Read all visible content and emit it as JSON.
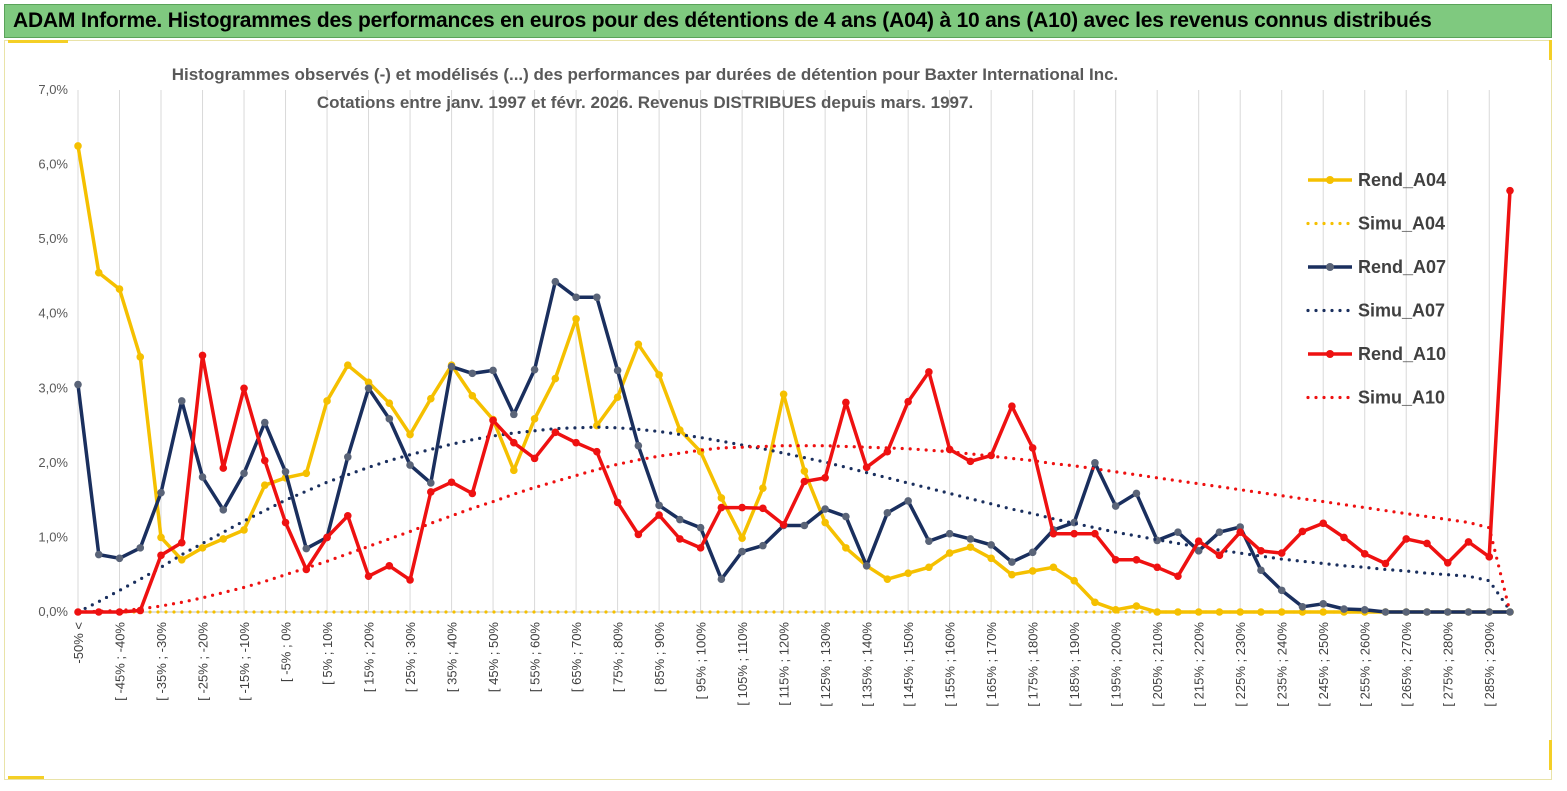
{
  "banner_title": "ADAM Informe. Histogrammes des performances en euros pour des détentions de 4 ans (A04) à 10 ans (A10) avec les revenus connus distribués",
  "chart_data": {
    "type": "line",
    "title_line1": "Histogrammes observés (-) et modélisés (...) des performances par durées de détention pour Baxter International Inc.",
    "title_line2": "Cotations entre janv. 1997 et févr. 2026. Revenus DISTRIBUES depuis mars. 1997.",
    "ylim": [
      0,
      7
    ],
    "yticks": [
      "0,0%",
      "1,0%",
      "2,0%",
      "3,0%",
      "4,0%",
      "5,0%",
      "6,0%",
      "7,0%"
    ],
    "xlabels": [
      "-50% <",
      "[ -45% ; -40%",
      "[ -35% ; -30%",
      "[ -25% ; -20%",
      "[ -15% ; -10%",
      "[ -5% ; 0%",
      "[ 5% ; 10%",
      "[ 15% ; 20%",
      "[ 25% ; 30%",
      "[ 35% ; 40%",
      "[ 45% ; 50%",
      "[ 55% ; 60%",
      "[ 65% ; 70%",
      "[ 75% ; 80%",
      "[ 85% ; 90%",
      "[ 95% ; 100%",
      "[ 105% ; 110%",
      "[ 115% ; 120%",
      "[ 125% ; 130%",
      "[ 135% ; 140%",
      "[ 145% ; 150%",
      "[ 155% ; 160%",
      "[ 165% ; 170%",
      "[ 175% ; 180%",
      "[ 185% ; 190%",
      "[ 195% ; 200%",
      "[ 205% ; 210%",
      "[ 215% ; 220%",
      "[ 225% ; 230%",
      "[ 235% ; 240%",
      "[ 245% ; 250%",
      "[ 255% ; 260%",
      "[ 265% ; 270%",
      "[ 275% ; 280%",
      "[ 285% ; 290%"
    ],
    "series": [
      {
        "name": "Rend_A04",
        "style": "solid",
        "color": "#f5c000",
        "values": [
          6.25,
          4.55,
          4.33,
          3.42,
          1.0,
          0.7,
          0.86,
          0.98,
          1.1,
          1.7,
          1.8,
          1.86,
          2.83,
          3.31,
          3.08,
          2.8,
          2.38,
          2.86,
          3.31,
          2.9,
          2.58,
          1.9,
          2.59,
          3.13,
          3.93,
          2.5,
          2.88,
          3.59,
          3.18,
          2.44,
          2.15,
          1.53,
          0.99,
          1.66,
          2.92,
          1.89,
          1.2,
          0.86,
          0.62,
          0.44,
          0.52,
          0.6,
          0.79,
          0.87,
          0.72,
          0.5,
          0.55,
          0.6,
          0.42,
          0.13,
          0.03,
          0.08,
          0,
          0,
          0,
          0,
          0,
          0,
          0,
          0,
          0,
          0,
          0,
          0,
          0,
          0,
          0,
          0,
          0,
          0
        ]
      },
      {
        "name": "Simu_A04",
        "style": "dotted",
        "color": "#f5c000",
        "values": [
          0,
          0,
          0,
          0,
          0,
          0,
          0,
          0,
          0,
          0,
          0,
          0,
          0,
          0,
          0,
          0,
          0,
          0,
          0,
          0,
          0,
          0,
          0,
          0,
          0,
          0,
          0,
          0,
          0,
          0,
          0,
          0,
          0,
          0,
          0,
          0,
          0,
          0,
          0,
          0,
          0,
          0,
          0,
          0,
          0,
          0,
          0,
          0,
          0,
          0,
          0,
          0,
          0,
          0,
          0,
          0,
          0,
          0,
          0,
          0,
          0,
          0,
          0,
          0,
          0,
          0,
          0,
          0,
          0,
          0
        ]
      },
      {
        "name": "Rend_A07",
        "style": "solid",
        "color": "#1a2f5e",
        "values": [
          3.05,
          0.77,
          0.72,
          0.86,
          1.6,
          2.83,
          1.81,
          1.37,
          1.86,
          2.54,
          1.88,
          0.85,
          1.0,
          2.08,
          3.0,
          2.59,
          1.97,
          1.73,
          3.29,
          3.2,
          3.24,
          2.65,
          3.25,
          4.43,
          4.22,
          4.22,
          3.24,
          2.23,
          1.43,
          1.24,
          1.13,
          0.44,
          0.81,
          0.89,
          1.16,
          1.16,
          1.38,
          1.28,
          0.62,
          1.33,
          1.49,
          0.95,
          1.05,
          0.98,
          0.9,
          0.67,
          0.8,
          1.1,
          1.2,
          2.0,
          1.42,
          1.59,
          0.96,
          1.07,
          0.82,
          1.07,
          1.14,
          0.56,
          0.29,
          0.07,
          0.11,
          0.04,
          0.03,
          0,
          0,
          0,
          0,
          0,
          0,
          0
        ]
      },
      {
        "name": "Simu_A07",
        "style": "dotted",
        "color": "#1a2f5e",
        "values": [
          0,
          0.14,
          0.29,
          0.44,
          0.6,
          0.77,
          0.92,
          1.07,
          1.22,
          1.36,
          1.5,
          1.62,
          1.74,
          1.84,
          1.94,
          2.03,
          2.11,
          2.18,
          2.25,
          2.31,
          2.36,
          2.4,
          2.43,
          2.46,
          2.47,
          2.48,
          2.47,
          2.45,
          2.42,
          2.38,
          2.34,
          2.29,
          2.24,
          2.19,
          2.13,
          2.07,
          2.01,
          1.94,
          1.87,
          1.8,
          1.73,
          1.66,
          1.59,
          1.52,
          1.45,
          1.38,
          1.32,
          1.25,
          1.19,
          1.13,
          1.07,
          1.02,
          0.97,
          0.92,
          0.87,
          0.83,
          0.79,
          0.75,
          0.71,
          0.68,
          0.65,
          0.62,
          0.6,
          0.57,
          0.55,
          0.52,
          0.5,
          0.48,
          0.42,
          0.02
        ]
      },
      {
        "name": "Rend_A10",
        "style": "solid",
        "color": "#ee1111",
        "values": [
          0,
          0,
          0,
          0.02,
          0.76,
          0.93,
          3.44,
          1.93,
          3.0,
          2.03,
          1.2,
          0.57,
          1.0,
          1.29,
          0.48,
          0.62,
          0.43,
          1.61,
          1.74,
          1.59,
          2.57,
          2.27,
          2.06,
          2.41,
          2.27,
          2.15,
          1.47,
          1.04,
          1.3,
          0.98,
          0.86,
          1.4,
          1.4,
          1.39,
          1.17,
          1.75,
          1.8,
          2.81,
          1.94,
          2.15,
          2.82,
          3.22,
          2.18,
          2.02,
          2.1,
          2.76,
          2.2,
          1.05,
          1.05,
          1.05,
          0.7,
          0.7,
          0.6,
          0.48,
          0.95,
          0.76,
          1.07,
          0.82,
          0.79,
          1.08,
          1.19,
          1.0,
          0.78,
          0.65,
          0.98,
          0.92,
          0.66,
          0.94,
          0.74,
          5.65
        ]
      },
      {
        "name": "Simu_A10",
        "style": "dotted",
        "color": "#ee1111",
        "values": [
          0,
          0.01,
          0.02,
          0.04,
          0.08,
          0.13,
          0.19,
          0.26,
          0.33,
          0.41,
          0.5,
          0.59,
          0.68,
          0.78,
          0.88,
          0.98,
          1.08,
          1.19,
          1.29,
          1.39,
          1.48,
          1.58,
          1.67,
          1.75,
          1.83,
          1.91,
          1.98,
          2.04,
          2.09,
          2.13,
          2.17,
          2.2,
          2.21,
          2.22,
          2.23,
          2.23,
          2.23,
          2.22,
          2.21,
          2.2,
          2.19,
          2.17,
          2.15,
          2.12,
          2.09,
          2.06,
          2.03,
          1.99,
          1.96,
          1.92,
          1.88,
          1.84,
          1.8,
          1.76,
          1.72,
          1.68,
          1.64,
          1.6,
          1.56,
          1.52,
          1.48,
          1.44,
          1.4,
          1.36,
          1.32,
          1.28,
          1.24,
          1.2,
          1.13,
          0.0
        ]
      }
    ]
  }
}
